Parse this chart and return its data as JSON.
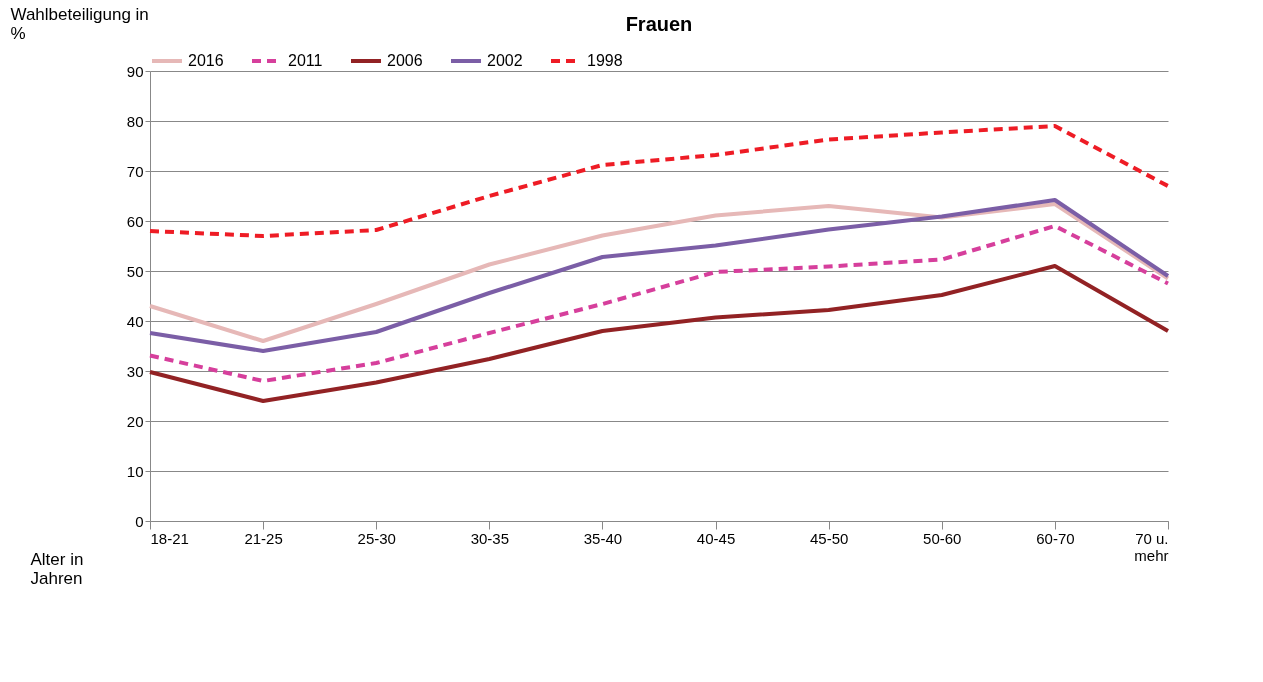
{
  "chart_data": {
    "type": "line",
    "title": "Frauen",
    "xlabel": "Alter in Jahren",
    "ylabel": "Wahlbeteiligung in %",
    "categories": [
      "18-21",
      "21-25",
      "25-30",
      "30-35",
      "35-40",
      "40-45",
      "45-50",
      "50-60",
      "60-70",
      "70 u.\nmehr"
    ],
    "series": [
      {
        "name": "2016",
        "color": "#e6b8b7",
        "line_style": "solid",
        "values": [
          43,
          36,
          43.4,
          51.3,
          57.1,
          61.1,
          63,
          60.7,
          63.4,
          48.5
        ]
      },
      {
        "name": "2011",
        "color": "#d63f9c",
        "line_style": "dashed",
        "values": [
          33.1,
          28,
          31.6,
          37.6,
          43.4,
          49.8,
          50.9,
          52.3,
          59,
          47.5
        ]
      },
      {
        "name": "2006",
        "color": "#922224",
        "line_style": "solid",
        "values": [
          29.8,
          24,
          27.7,
          32.4,
          38,
          40.7,
          42.2,
          45.2,
          51,
          38
        ]
      },
      {
        "name": "2002",
        "color": "#7b5ea6",
        "line_style": "solid",
        "values": [
          37.6,
          34,
          37.8,
          45.6,
          52.8,
          55.1,
          58.3,
          60.9,
          64.2,
          49
        ]
      },
      {
        "name": "1998",
        "color": "#ee1c25",
        "line_style": "dashed",
        "values": [
          58,
          57,
          58.2,
          65,
          71.2,
          73.2,
          76.3,
          77.7,
          79,
          67
        ]
      }
    ],
    "ylim": [
      0,
      90
    ],
    "yticks": [
      0,
      10,
      20,
      30,
      40,
      50,
      60,
      70,
      80,
      90
    ],
    "grid": "y",
    "legend": "top",
    "marker": "none"
  }
}
